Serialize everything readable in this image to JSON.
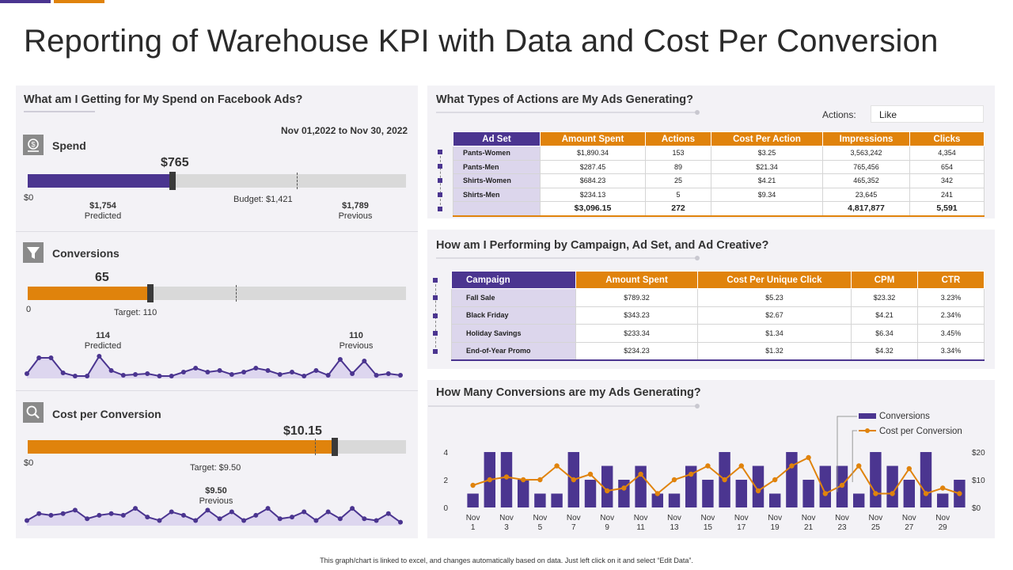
{
  "colors": {
    "purple": "#4b3590",
    "orange": "#e0830c",
    "gray": "#d9d9d9"
  },
  "title": "Reporting of Warehouse KPI with Data and Cost Per Conversion",
  "facebook": {
    "title": "What am I Getting for My Spend on Facebook Ads?",
    "date_range": "Nov  01,2022 to Nov  30, 2022",
    "spend": {
      "label": "Spend",
      "value": "$765",
      "value_num": 765,
      "axis_max": 2000,
      "zero": "$0",
      "budget_label": "Budget: $1,421",
      "budget_num": 1421,
      "predicted_value": "$1,754",
      "predicted_label": "Predicted",
      "previous_value": "$1,789",
      "previous_label": "Previous"
    },
    "conversions": {
      "label": "Conversions",
      "value": "65",
      "value_num": 65,
      "axis_max": 200,
      "zero": "0",
      "target_label": "Target: 110",
      "target_num": 110,
      "predicted_value": "114",
      "predicted_label": "Predicted",
      "previous_value": "110",
      "previous_label": "Previous",
      "spark": [
        6,
        26,
        26,
        7,
        3,
        3,
        28,
        10,
        4,
        5,
        6,
        3,
        3,
        8,
        13,
        8,
        10,
        5,
        8,
        13,
        10,
        5,
        8,
        3,
        10,
        4,
        24,
        6,
        22,
        4,
        6,
        4
      ]
    },
    "cost": {
      "label": "Cost per Conversion",
      "value": "$10.15",
      "value_num": 10.15,
      "axis_max": 12.5,
      "zero": "$0",
      "target_label": "Target: $9.50",
      "target_num": 9.5,
      "previous_value": "$9.50",
      "previous_label": "Previous",
      "spark": [
        6,
        14,
        12,
        14,
        18,
        8,
        12,
        14,
        12,
        20,
        10,
        6,
        16,
        12,
        6,
        18,
        8,
        16,
        6,
        12,
        20,
        8,
        10,
        16,
        6,
        16,
        8,
        20,
        8,
        6,
        14,
        4
      ]
    }
  },
  "actions": {
    "title": "What Types of Actions are My Ads Generating?",
    "filter_label": "Actions:",
    "filter_value": "Like",
    "headers": [
      "Ad Set",
      "Amount  Spent",
      "Actions",
      "Cost Per Action",
      "Impressions",
      "Clicks"
    ],
    "rows": [
      [
        "Pants-Women",
        "$1,890.34",
        "153",
        "$3.25",
        "3,563,242",
        "4,354"
      ],
      [
        "Pants-Men",
        "$287.45",
        "89",
        "$21.34",
        "765,456",
        "654"
      ],
      [
        "Shirts-Women",
        "$684.23",
        "25",
        "$4.21",
        "465,352",
        "342"
      ],
      [
        "Shirts-Men",
        "$234.13",
        "5",
        "$9.34",
        "23,645",
        "241"
      ]
    ],
    "totals": [
      "",
      "$3,096.15",
      "272",
      "",
      "4,817,877",
      "5,591"
    ]
  },
  "campaign": {
    "title": "How am I Performing by Campaign, Ad Set, and Ad Creative?",
    "headers": [
      "Campaign",
      "Amount  Spent",
      "Cost Per Unique Click",
      "CPM",
      "CTR"
    ],
    "rows": [
      [
        "Fall Sale",
        "$789.32",
        "$5.23",
        "$23.32",
        "3.23%"
      ],
      [
        "Black Friday",
        "$343.23",
        "$2.67",
        "$4.21",
        "2.34%"
      ],
      [
        "Holiday Savings",
        "$233.34",
        "$1.34",
        "$6.34",
        "3.45%"
      ],
      [
        "End-of-Year Promo",
        "$234.23",
        "$1.32",
        "$4.32",
        "3.34%"
      ]
    ]
  },
  "chart_data": {
    "type": "bar",
    "title": "How Many Conversions are my Ads Generating?",
    "categories": [
      "Nov 1",
      "Nov 2",
      "Nov 3",
      "Nov 4",
      "Nov 5",
      "Nov 6",
      "Nov 7",
      "Nov 8",
      "Nov 9",
      "Nov 10",
      "Nov 11",
      "Nov 12",
      "Nov 13",
      "Nov 14",
      "Nov 15",
      "Nov 16",
      "Nov 17",
      "Nov 18",
      "Nov 19",
      "Nov 20",
      "Nov 21",
      "Nov 22",
      "Nov 23",
      "Nov 24",
      "Nov 25",
      "Nov 26",
      "Nov 27",
      "Nov 28",
      "Nov 29",
      "Nov 30"
    ],
    "tick_labels": [
      [
        "Nov",
        "1"
      ],
      [
        "Nov",
        "3"
      ],
      [
        "Nov",
        "5"
      ],
      [
        "Nov",
        "7"
      ],
      [
        "Nov",
        "9"
      ],
      [
        "Nov",
        "11"
      ],
      [
        "Nov",
        "13"
      ],
      [
        "Nov",
        "15"
      ],
      [
        "Nov",
        "17"
      ],
      [
        "Nov",
        "19"
      ],
      [
        "Nov",
        "21"
      ],
      [
        "Nov",
        "23"
      ],
      [
        "Nov",
        "25"
      ],
      [
        "Nov",
        "27"
      ],
      [
        "Nov",
        "29"
      ]
    ],
    "series": [
      {
        "name": "Conversions",
        "type": "bar",
        "axis": "left",
        "values": [
          1,
          4,
          4,
          2,
          1,
          1,
          4,
          2,
          3,
          2,
          3,
          1,
          1,
          3,
          2,
          4,
          2,
          3,
          1,
          4,
          2,
          3,
          3,
          1,
          4,
          3,
          2,
          4,
          1,
          2
        ]
      },
      {
        "name": "Cost per Conversion",
        "type": "line",
        "axis": "right",
        "values": [
          8,
          10,
          11,
          10,
          10,
          15,
          10,
          12,
          6,
          7,
          12,
          5,
          10,
          12,
          15,
          10,
          15,
          6,
          10,
          15,
          18,
          5,
          8,
          15,
          5,
          5,
          14,
          5,
          7,
          5
        ]
      }
    ],
    "ylim_left": [
      0,
      4
    ],
    "yticks_left": [
      "0",
      "2",
      "4"
    ],
    "ylim_right": [
      0,
      20
    ],
    "yticks_right": [
      "$0",
      "$10",
      "$20"
    ],
    "legend": [
      "Conversions",
      "Cost per Conversion"
    ],
    "legend_position": "top-right"
  },
  "footer": "This graph/chart is linked to excel, and changes automatically based on data. Just left click on it and select “Edit Data”."
}
